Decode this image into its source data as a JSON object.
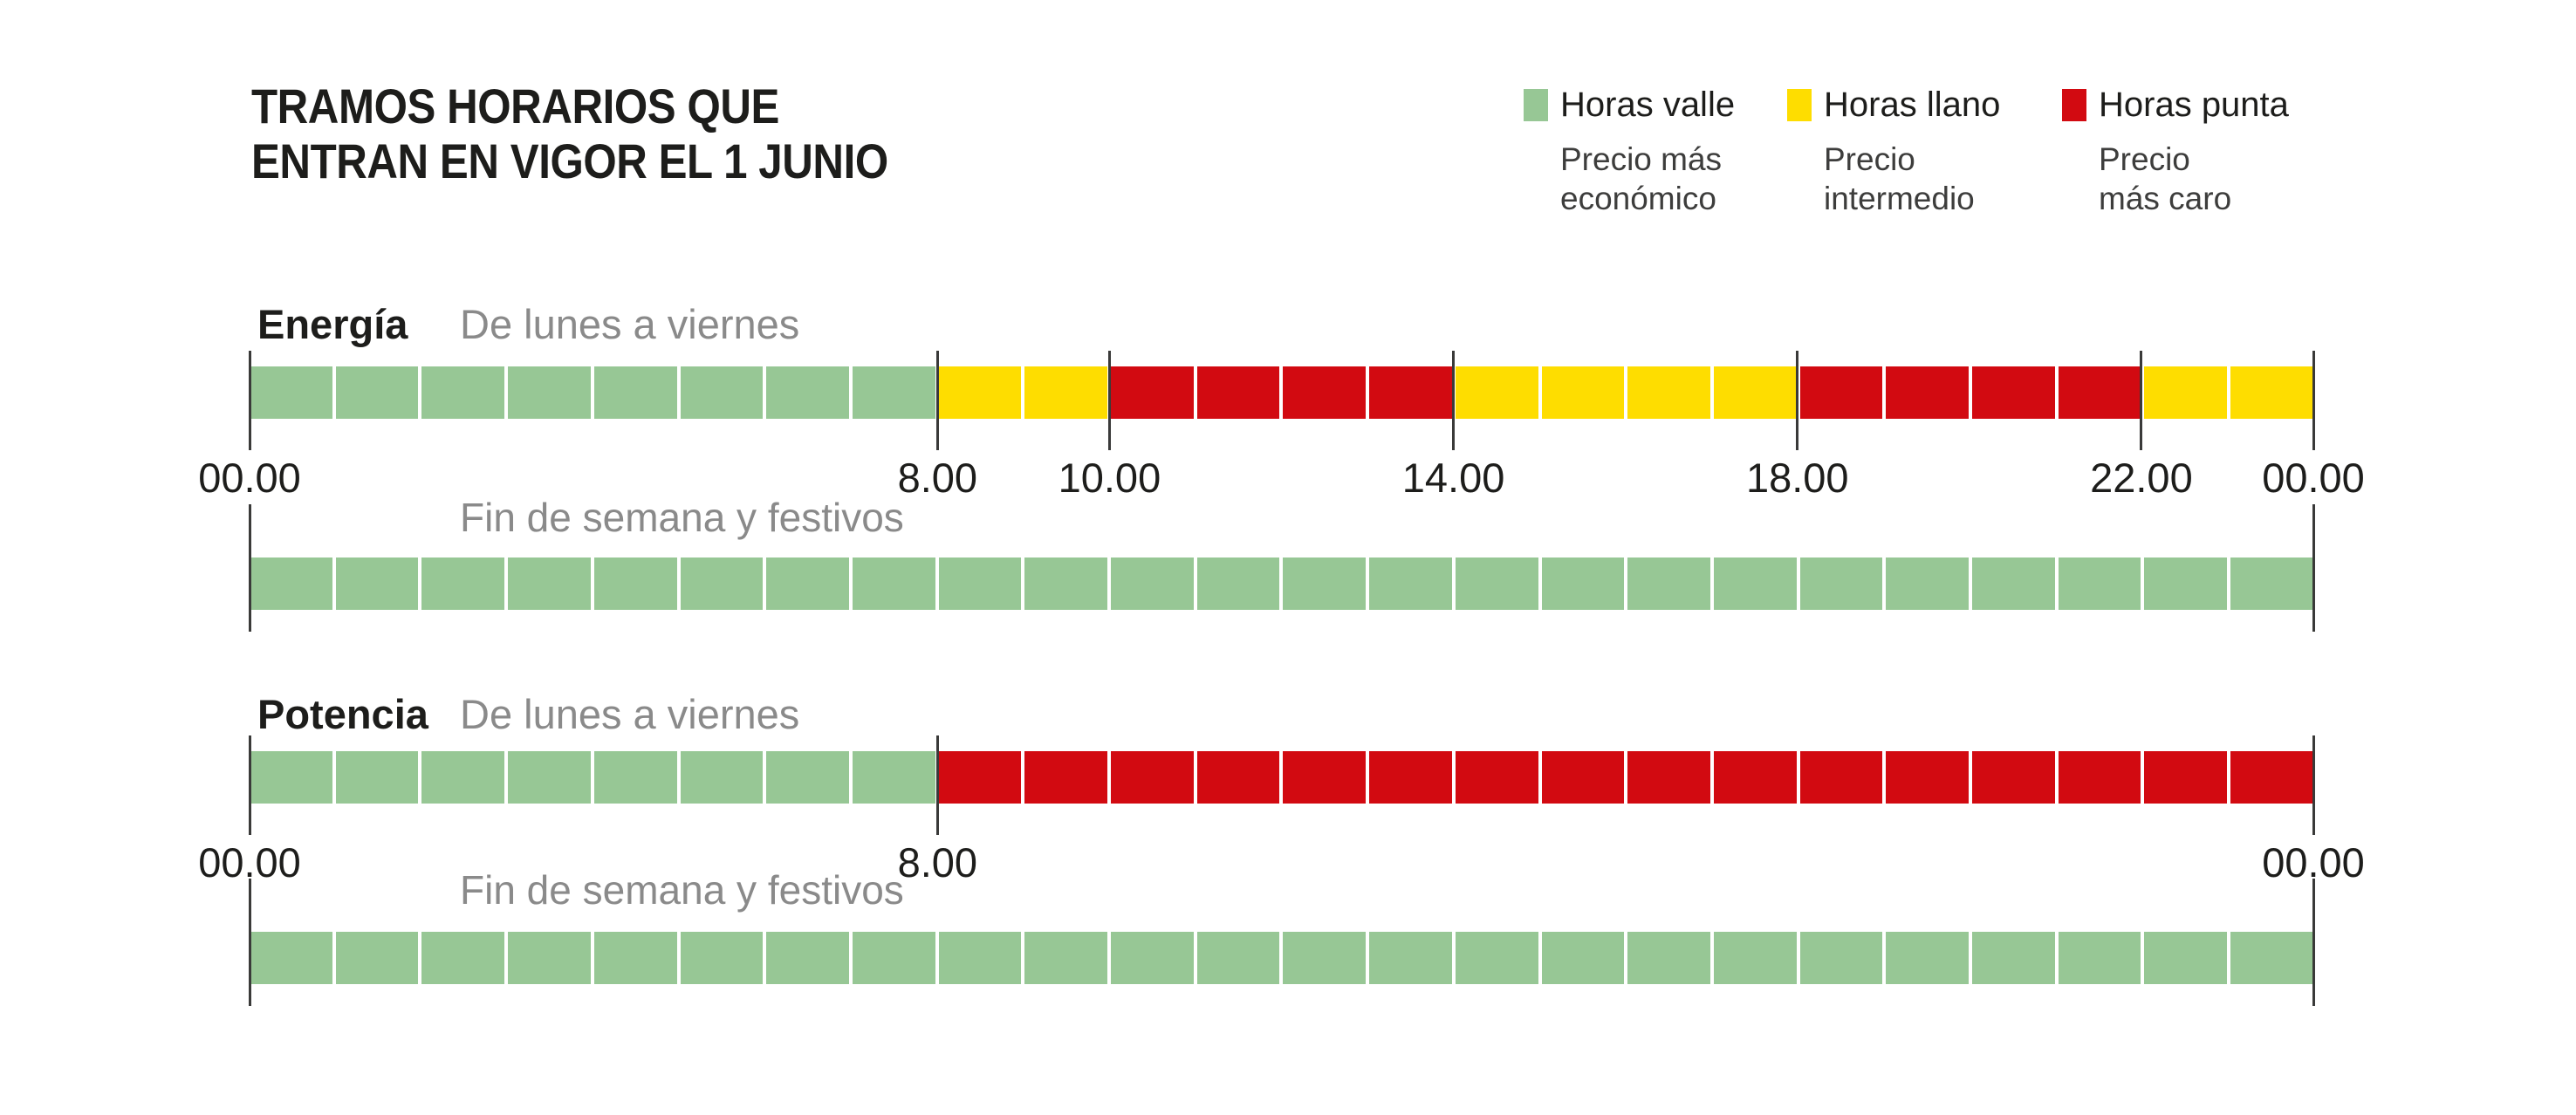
{
  "title": {
    "line1": "TRAMOS HORARIOS QUE",
    "line2": "ENTRAN EN VIGOR EL 1 JUNIO"
  },
  "chart_data": {
    "type": "timeline_bands",
    "unit": "hours",
    "hours_total": 24,
    "grid": "hourly white separators inside bars",
    "colors": {
      "valle": "#97c795",
      "llano": "#fedd00",
      "punta": "#d20a11"
    },
    "tick_color": "#3a3a39",
    "legend": [
      {
        "key": "valle",
        "label": "Horas valle",
        "description": "Precio más\neconómico"
      },
      {
        "key": "llano",
        "label": "Horas llano",
        "description": "Precio\nintermedio"
      },
      {
        "key": "punta",
        "label": "Horas punta",
        "description": "Precio\nmás caro"
      }
    ],
    "sections": [
      {
        "name": "Energía",
        "weekday_label": "De lunes a viernes",
        "weekend_label": "Fin de semana y festivos",
        "weekday": {
          "segments": [
            {
              "category": "valle",
              "from": 0,
              "to": 8
            },
            {
              "category": "llano",
              "from": 8,
              "to": 10
            },
            {
              "category": "punta",
              "from": 10,
              "to": 14
            },
            {
              "category": "llano",
              "from": 14,
              "to": 18
            },
            {
              "category": "punta",
              "from": 18,
              "to": 22
            },
            {
              "category": "llano",
              "from": 22,
              "to": 24
            }
          ],
          "ticks": [
            0,
            8,
            10,
            14,
            18,
            22,
            24
          ],
          "axis": [
            {
              "hour": 0,
              "label": "00.00"
            },
            {
              "hour": 8,
              "label": "8.00"
            },
            {
              "hour": 10,
              "label": "10.00"
            },
            {
              "hour": 14,
              "label": "14.00"
            },
            {
              "hour": 18,
              "label": "18.00"
            },
            {
              "hour": 22,
              "label": "22.00"
            },
            {
              "hour": 24,
              "label": "00.00"
            }
          ]
        },
        "weekend": {
          "segments": [
            {
              "category": "valle",
              "from": 0,
              "to": 24
            }
          ],
          "ticks": [
            0,
            24
          ],
          "axis": []
        }
      },
      {
        "name": "Potencia",
        "weekday_label": "De lunes a viernes",
        "weekend_label": "Fin de semana y festivos",
        "weekday": {
          "segments": [
            {
              "category": "valle",
              "from": 0,
              "to": 8
            },
            {
              "category": "punta",
              "from": 8,
              "to": 24
            }
          ],
          "ticks": [
            0,
            8,
            24
          ],
          "axis": [
            {
              "hour": 0,
              "label": "00.00"
            },
            {
              "hour": 8,
              "label": "8.00"
            },
            {
              "hour": 24,
              "label": "00.00"
            }
          ]
        },
        "weekend": {
          "segments": [
            {
              "category": "valle",
              "from": 0,
              "to": 24
            }
          ],
          "ticks": [
            0,
            24
          ],
          "axis": []
        }
      }
    ]
  }
}
